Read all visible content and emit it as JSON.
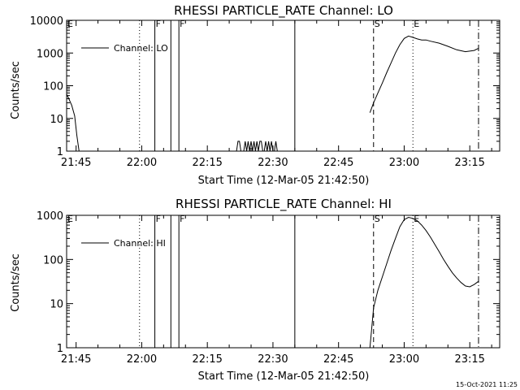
{
  "footer": {
    "timestamp": "15-Oct-2021 11:25"
  },
  "chart_data": [
    {
      "type": "line",
      "title": "RHESSI PARTICLE_RATE Channel: LO",
      "xlabel": "Start Time (12-Mar-05 21:42:50)",
      "ylabel": "Counts/sec",
      "yscale": "log",
      "xlim": [
        "21:42:50",
        "23:21:50"
      ],
      "ylim": [
        1,
        10000
      ],
      "x_ticks": [
        "21:45",
        "22:00",
        "22:15",
        "22:30",
        "22:45",
        "23:00",
        "23:15"
      ],
      "y_ticks": [
        "1",
        "10",
        "100",
        "1000",
        "10000"
      ],
      "grid": false,
      "legend": {
        "position": "top-left",
        "label": "Channel: LO"
      },
      "markers": [
        {
          "time": "21:42:50",
          "style": "solid",
          "label": "E"
        },
        {
          "time": "21:59:30",
          "style": "dotted",
          "label": ""
        },
        {
          "time": "22:03:00",
          "style": "solid",
          "label": "F"
        },
        {
          "time": "22:06:40",
          "style": "solid",
          "label": ""
        },
        {
          "time": "22:08:30",
          "style": "solid",
          "label": "F"
        },
        {
          "time": "22:35:00",
          "style": "solid",
          "label": ""
        },
        {
          "time": "22:53:00",
          "style": "dashed",
          "label": "S"
        },
        {
          "time": "23:02:00",
          "style": "dotted",
          "label": "E"
        },
        {
          "time": "23:17:00",
          "style": "dashdot",
          "label": ""
        }
      ],
      "series": [
        {
          "name": "Channel: LO",
          "segments": [
            {
              "x": [
                "21:42:50",
                "21:43:20",
                "21:44:00",
                "21:44:40",
                "21:45:10",
                "21:45:40"
              ],
              "y": [
                55,
                40,
                25,
                12,
                3,
                1
              ]
            },
            {
              "x": [
                "22:21:40",
                "22:22:00",
                "22:22:20",
                "22:22:40",
                "22:23:00",
                "22:23:20",
                "22:23:40",
                "22:24:00",
                "22:24:20",
                "22:24:40",
                "22:25:00",
                "22:25:20",
                "22:25:40",
                "22:26:00",
                "22:26:20",
                "22:26:40",
                "22:27:00",
                "22:27:20",
                "22:27:40",
                "22:28:00",
                "22:28:20",
                "22:28:40",
                "22:29:00",
                "22:29:20",
                "22:29:40",
                "22:30:00",
                "22:30:20",
                "22:30:40",
                "22:31:00"
              ],
              "y": [
                1,
                2,
                2,
                1,
                1,
                1,
                2,
                1,
                2,
                1,
                2,
                1,
                2,
                1,
                2,
                1,
                2,
                2,
                1,
                1,
                2,
                1,
                2,
                1,
                2,
                1,
                1,
                2,
                1
              ]
            },
            {
              "x": [
                "22:52:10",
                "22:53:00",
                "22:54:00",
                "22:55:00",
                "22:56:00",
                "22:57:00",
                "22:58:00",
                "22:59:00",
                "23:00:00",
                "23:01:00",
                "23:02:00",
                "23:03:00",
                "23:04:00",
                "23:05:00",
                "23:06:00",
                "23:08:00",
                "23:10:00",
                "23:12:00",
                "23:14:00",
                "23:16:00",
                "23:17:00"
              ],
              "y": [
                15,
                30,
                60,
                120,
                250,
                500,
                1000,
                1800,
                2800,
                3300,
                3000,
                2700,
                2500,
                2500,
                2300,
                2000,
                1600,
                1250,
                1100,
                1200,
                1400
              ]
            }
          ]
        }
      ]
    },
    {
      "type": "line",
      "title": "RHESSI PARTICLE_RATE Channel: HI",
      "xlabel": "Start Time (12-Mar-05 21:42:50)",
      "ylabel": "Counts/sec",
      "yscale": "log",
      "xlim": [
        "21:42:50",
        "23:21:50"
      ],
      "ylim": [
        1,
        1000
      ],
      "x_ticks": [
        "21:45",
        "22:00",
        "22:15",
        "22:30",
        "22:45",
        "23:00",
        "23:15"
      ],
      "y_ticks": [
        "1",
        "10",
        "100",
        "1000"
      ],
      "grid": false,
      "legend": {
        "position": "top-left",
        "label": "Channel: HI"
      },
      "markers": [
        {
          "time": "21:42:50",
          "style": "solid",
          "label": "E"
        },
        {
          "time": "21:59:30",
          "style": "dotted",
          "label": ""
        },
        {
          "time": "22:03:00",
          "style": "solid",
          "label": "F"
        },
        {
          "time": "22:06:40",
          "style": "solid",
          "label": ""
        },
        {
          "time": "22:08:30",
          "style": "solid",
          "label": "F"
        },
        {
          "time": "22:35:00",
          "style": "solid",
          "label": ""
        },
        {
          "time": "22:53:00",
          "style": "dashed",
          "label": "S"
        },
        {
          "time": "23:02:00",
          "style": "dotted",
          "label": "E"
        },
        {
          "time": "23:17:00",
          "style": "dashdot",
          "label": ""
        }
      ],
      "series": [
        {
          "name": "Channel: HI",
          "segments": [
            {
              "x": [
                "22:52:10",
                "22:53:00",
                "22:54:00",
                "22:55:00",
                "22:56:00",
                "22:57:00",
                "22:58:00",
                "22:59:00",
                "23:00:00",
                "23:01:00",
                "23:02:00",
                "23:03:00",
                "23:04:00",
                "23:05:00",
                "23:06:00",
                "23:07:00",
                "23:08:00",
                "23:09:00",
                "23:10:00",
                "23:11:00",
                "23:12:00",
                "23:13:00",
                "23:14:00",
                "23:15:00",
                "23:16:00",
                "23:17:00"
              ],
              "y": [
                1,
                8,
                20,
                40,
                80,
                160,
                300,
                550,
                800,
                900,
                850,
                750,
                600,
                450,
                320,
                220,
                150,
                100,
                70,
                50,
                38,
                30,
                25,
                24,
                27,
                32
              ]
            }
          ]
        }
      ]
    }
  ]
}
